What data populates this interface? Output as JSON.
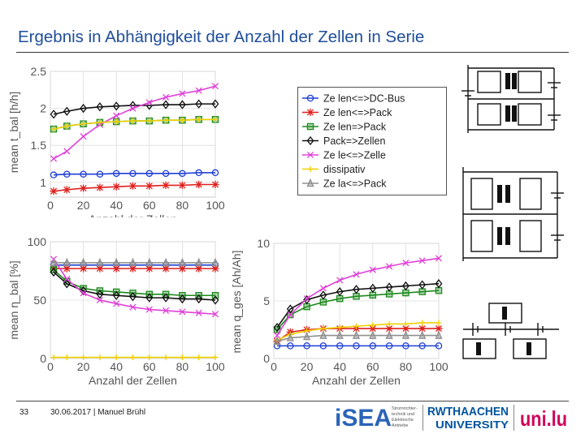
{
  "slide": {
    "title": "Ergebnis in Abhängigkeit der Anzahl der Zellen in Serie",
    "slide_number": "33",
    "footer": "30.06.2017 | Manuel Brühl"
  },
  "logos": {
    "isea_text": "iSEA",
    "isea_sub": [
      "Stromrichter-",
      "technik und",
      "Elektrische",
      "Antriebe"
    ],
    "rwth_top": "RWTHAACHEN",
    "rwth_bottom": "UNIVERSITY",
    "third": "uni.lu"
  },
  "legend": [
    {
      "label": "Ze len<=>DC-Bus",
      "color": "#1f3fd6",
      "marker": "circle"
    },
    {
      "label": "Ze len<=>Pack",
      "color": "#e0201e",
      "marker": "star"
    },
    {
      "label": "Ze len=>Pack",
      "color": "#1e8a1e",
      "marker": "square"
    },
    {
      "label": "Pack=>Zellen",
      "color": "#111111",
      "marker": "diamond"
    },
    {
      "label": "Ze le<=>Zelle",
      "color": "#e040d8",
      "marker": "x"
    },
    {
      "label": "dissipativ",
      "color": "#f0d000",
      "marker": "plus"
    },
    {
      "label": "Ze la<=>Pack",
      "color": "#909090",
      "marker": "triangle"
    }
  ],
  "chart_data": [
    {
      "type": "line",
      "xlabel": "Anzahl der Zellen",
      "ylabel": "mean t_bal [h/h]",
      "xlim": [
        0,
        100
      ],
      "ylim": [
        0.8,
        2.5
      ],
      "xticks": [
        "0",
        "20",
        "40",
        "60",
        "80",
        "100"
      ],
      "yticks": [
        {
          "v": 1,
          "label": "1"
        },
        {
          "v": 1.5,
          "label": "1.5"
        },
        {
          "v": 2,
          "label": "2"
        },
        {
          "v": 2.5,
          "label": "2.5"
        }
      ],
      "grid": true,
      "x": [
        2,
        10,
        20,
        30,
        40,
        50,
        60,
        70,
        80,
        90,
        100
      ],
      "series": [
        {
          "color": "#1f3fd6",
          "marker": "circle",
          "values": [
            1.1,
            1.11,
            1.11,
            1.11,
            1.12,
            1.12,
            1.12,
            1.12,
            1.12,
            1.13,
            1.13
          ]
        },
        {
          "color": "#e0201e",
          "marker": "star",
          "values": [
            0.88,
            0.9,
            0.92,
            0.93,
            0.94,
            0.95,
            0.95,
            0.96,
            0.96,
            0.97,
            0.97
          ]
        },
        {
          "color": "#1e8a1e",
          "marker": "square",
          "values": [
            1.72,
            1.76,
            1.79,
            1.81,
            1.82,
            1.83,
            1.83,
            1.84,
            1.84,
            1.85,
            1.85
          ]
        },
        {
          "color": "#111111",
          "marker": "diamond",
          "values": [
            1.92,
            1.96,
            2.0,
            2.02,
            2.03,
            2.04,
            2.04,
            2.05,
            2.05,
            2.06,
            2.06
          ]
        },
        {
          "color": "#e040d8",
          "marker": "x",
          "values": [
            1.32,
            1.42,
            1.62,
            1.78,
            1.9,
            2.0,
            2.08,
            2.15,
            2.2,
            2.24,
            2.3
          ]
        },
        {
          "color": "#f0d000",
          "marker": "plus",
          "values": [
            1.72,
            1.76,
            1.79,
            1.81,
            1.82,
            1.83,
            1.83,
            1.84,
            1.84,
            1.85,
            1.85
          ]
        }
      ]
    },
    {
      "type": "line",
      "xlabel": "Anzahl der Zellen",
      "ylabel": "mean η_bal [%]",
      "xlim": [
        0,
        100
      ],
      "ylim": [
        0,
        100
      ],
      "xticks": [
        "0",
        "20",
        "40",
        "60",
        "80",
        "100"
      ],
      "yticks": [
        {
          "v": 0,
          "label": "0"
        },
        {
          "v": 50,
          "label": "50"
        },
        {
          "v": 100,
          "label": "100"
        }
      ],
      "grid": true,
      "x": [
        2,
        10,
        20,
        30,
        40,
        50,
        60,
        70,
        80,
        90,
        100
      ],
      "series": [
        {
          "color": "#1f3fd6",
          "marker": "circle",
          "values": [
            80,
            80,
            80,
            80,
            80,
            80,
            80,
            80,
            80,
            80,
            80
          ]
        },
        {
          "color": "#e0201e",
          "marker": "star",
          "values": [
            77,
            77,
            77,
            77,
            77,
            77,
            77,
            77,
            77,
            77,
            77
          ]
        },
        {
          "color": "#1e8a1e",
          "marker": "square",
          "values": [
            76,
            66,
            60,
            58,
            57,
            56,
            55,
            55,
            54,
            54,
            54
          ]
        },
        {
          "color": "#111111",
          "marker": "diamond",
          "values": [
            74,
            64,
            58,
            55,
            54,
            53,
            52,
            52,
            51,
            51,
            50
          ]
        },
        {
          "color": "#e040d8",
          "marker": "x",
          "values": [
            85,
            68,
            56,
            50,
            47,
            44,
            42,
            41,
            40,
            39,
            38
          ]
        },
        {
          "color": "#f0d000",
          "marker": "plus",
          "values": [
            1,
            1,
            1,
            1,
            1,
            1,
            1,
            1,
            1,
            1,
            1
          ]
        },
        {
          "color": "#909090",
          "marker": "triangle",
          "values": [
            82,
            82,
            82,
            82,
            82,
            82,
            82,
            82,
            82,
            82,
            82
          ]
        }
      ]
    },
    {
      "type": "line",
      "xlabel": "Anzahl der Zellen",
      "ylabel": "mean q_ges [Ah/Ah]",
      "xlim": [
        0,
        100
      ],
      "ylim": [
        0,
        10
      ],
      "xticks": [
        "0",
        "20",
        "40",
        "60",
        "80",
        "100"
      ],
      "yticks": [
        {
          "v": 0,
          "label": "0"
        },
        {
          "v": 5,
          "label": "5"
        },
        {
          "v": 10,
          "label": "10"
        }
      ],
      "grid": true,
      "x": [
        2,
        10,
        20,
        30,
        40,
        50,
        60,
        70,
        80,
        90,
        100
      ],
      "series": [
        {
          "color": "#1f3fd6",
          "marker": "circle",
          "values": [
            1.1,
            1.1,
            1.1,
            1.1,
            1.1,
            1.1,
            1.1,
            1.1,
            1.1,
            1.1,
            1.1
          ]
        },
        {
          "color": "#e0201e",
          "marker": "star",
          "values": [
            1.5,
            2.3,
            2.5,
            2.6,
            2.6,
            2.6,
            2.6,
            2.6,
            2.6,
            2.6,
            2.6
          ]
        },
        {
          "color": "#1e8a1e",
          "marker": "square",
          "values": [
            2.5,
            3.8,
            4.5,
            4.9,
            5.2,
            5.4,
            5.5,
            5.6,
            5.7,
            5.8,
            5.9
          ]
        },
        {
          "color": "#111111",
          "marker": "diamond",
          "values": [
            2.7,
            4.3,
            5.1,
            5.5,
            5.8,
            6.0,
            6.1,
            6.2,
            6.3,
            6.4,
            6.5
          ]
        },
        {
          "color": "#e040d8",
          "marker": "x",
          "values": [
            2.0,
            3.8,
            5.2,
            6.1,
            6.8,
            7.3,
            7.7,
            8.0,
            8.3,
            8.5,
            8.7
          ]
        },
        {
          "color": "#f0d000",
          "marker": "plus",
          "values": [
            1.6,
            2.1,
            2.4,
            2.6,
            2.7,
            2.8,
            2.9,
            3.0,
            3.0,
            3.1,
            3.1
          ]
        },
        {
          "color": "#909090",
          "marker": "triangle",
          "values": [
            1.5,
            1.8,
            1.9,
            2.0,
            2.0,
            2.0,
            2.0,
            2.0,
            2.0,
            2.0,
            2.0
          ]
        }
      ]
    }
  ]
}
